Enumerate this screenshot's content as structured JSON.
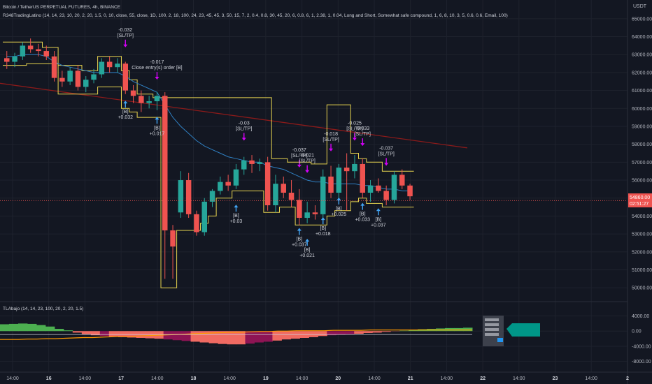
{
  "header": {
    "symbol_line": "Bitcoin / TetherUS PERPETUAL FUTURES, 4h, BINANCE",
    "indicator_line": "R348TradingLatino (14, 14, 23, 10, 20, 2, 20, 1.5, 0, 10, close, 55, close, 1D, 100, 2, 18, 100, 24, 23, 45, 45, 3, 50, 15, 7, 2, 0.4, 0.8, 30, 45, 20, 6, 0.8, 6, 1, 2.38, 1, 0.04, Long and Short, Somewhat safe compound, 1, 6, 8, 10, 3, 5, 0.6, 0.6, Email, 100)",
    "currency": "USDT"
  },
  "price_tag": {
    "value": "54860.00",
    "countdown": "02:51:27"
  },
  "osc_header": "TLAbajo (14, 14, 23, 100, 20, 2, 20, 1.5)",
  "colors": {
    "bg": "#131722",
    "up": "#26a69a",
    "down": "#ef5350",
    "band": "#e6d34f",
    "ema": "#2f7fc1",
    "ma": "#8b1a1a",
    "grid": "#1e222d",
    "signal": "#d500f9",
    "buy": "#42a5f5",
    "osc_green": "#4caf50",
    "osc_red": "#f06a62",
    "osc_maroon": "#8e1454",
    "osc_line": "#ff9800"
  },
  "chart_data": [
    {
      "type": "candlestick",
      "ylim": [
        49500,
        65500
      ],
      "y_ticks": [
        50000,
        51000,
        52000,
        53000,
        54000,
        55000,
        56000,
        57000,
        58000,
        59000,
        60000,
        61000,
        62000,
        63000,
        64000,
        65000
      ],
      "y_tick_labels": [
        "50000.00",
        "51000.00",
        "52000.00",
        "53000.00",
        "54000.00",
        "55000.00",
        "56000.00",
        "57000.00",
        "58000.00",
        "59000.00",
        "60000.00",
        "61000.00",
        "62000.00",
        "63000.00",
        "64000.00",
        "65000.00"
      ],
      "x_tick_labels": [
        "14:00",
        "16",
        "14:00",
        "17",
        "14:00",
        "18",
        "14:00",
        "19",
        "14:00",
        "20",
        "14:00",
        "21",
        "14:00",
        "22",
        "14:00",
        "23",
        "14:00",
        "2"
      ],
      "candles": [
        {
          "o": 62800,
          "h": 63200,
          "l": 62200,
          "c": 62600
        },
        {
          "o": 62600,
          "h": 63100,
          "l": 62300,
          "c": 62900
        },
        {
          "o": 62900,
          "h": 63700,
          "l": 62700,
          "c": 63500
        },
        {
          "o": 63500,
          "h": 63900,
          "l": 63100,
          "c": 63300
        },
        {
          "o": 63300,
          "h": 63600,
          "l": 62900,
          "c": 63200
        },
        {
          "o": 63200,
          "h": 63500,
          "l": 62700,
          "c": 62900
        },
        {
          "o": 62900,
          "h": 63200,
          "l": 61500,
          "c": 61700
        },
        {
          "o": 61700,
          "h": 62100,
          "l": 61200,
          "c": 61500
        },
        {
          "o": 61500,
          "h": 62300,
          "l": 61300,
          "c": 62100
        },
        {
          "o": 62100,
          "h": 62400,
          "l": 61000,
          "c": 61200
        },
        {
          "o": 61200,
          "h": 61800,
          "l": 60900,
          "c": 61600
        },
        {
          "o": 61600,
          "h": 62200,
          "l": 61400,
          "c": 61900
        },
        {
          "o": 61900,
          "h": 62800,
          "l": 61700,
          "c": 62600
        },
        {
          "o": 62600,
          "h": 62900,
          "l": 62000,
          "c": 62300
        },
        {
          "o": 62300,
          "h": 62800,
          "l": 62000,
          "c": 62500
        },
        {
          "o": 62500,
          "h": 62600,
          "l": 60800,
          "c": 61000
        },
        {
          "o": 61000,
          "h": 61300,
          "l": 60300,
          "c": 60700
        },
        {
          "o": 60700,
          "h": 61000,
          "l": 59800,
          "c": 60300
        },
        {
          "o": 60300,
          "h": 60700,
          "l": 60000,
          "c": 60400
        },
        {
          "o": 60400,
          "h": 60900,
          "l": 59900,
          "c": 60700
        },
        {
          "o": 60700,
          "h": 60900,
          "l": 50500,
          "c": 53200
        },
        {
          "o": 53200,
          "h": 53500,
          "l": 50500,
          "c": 52300
        },
        {
          "o": 54200,
          "h": 56500,
          "l": 53900,
          "c": 56000
        },
        {
          "o": 56000,
          "h": 56400,
          "l": 53900,
          "c": 54100
        },
        {
          "o": 54100,
          "h": 54300,
          "l": 52900,
          "c": 53100
        },
        {
          "o": 53100,
          "h": 55000,
          "l": 52900,
          "c": 54800
        },
        {
          "o": 54800,
          "h": 55500,
          "l": 54500,
          "c": 55400
        },
        {
          "o": 55400,
          "h": 56200,
          "l": 55200,
          "c": 55900
        },
        {
          "o": 55900,
          "h": 56300,
          "l": 55400,
          "c": 55700
        },
        {
          "o": 55700,
          "h": 56900,
          "l": 55500,
          "c": 56600
        },
        {
          "o": 56600,
          "h": 57300,
          "l": 56300,
          "c": 57100
        },
        {
          "o": 57100,
          "h": 57400,
          "l": 56400,
          "c": 56900
        },
        {
          "o": 56900,
          "h": 57200,
          "l": 56500,
          "c": 57000
        },
        {
          "o": 57000,
          "h": 57300,
          "l": 54300,
          "c": 54600
        },
        {
          "o": 54600,
          "h": 56300,
          "l": 54200,
          "c": 55800
        },
        {
          "o": 55800,
          "h": 56200,
          "l": 55000,
          "c": 55300
        },
        {
          "o": 55300,
          "h": 56000,
          "l": 54500,
          "c": 54900
        },
        {
          "o": 54900,
          "h": 55500,
          "l": 53500,
          "c": 53900
        },
        {
          "o": 53900,
          "h": 54800,
          "l": 53600,
          "c": 54200
        },
        {
          "o": 54200,
          "h": 54600,
          "l": 53800,
          "c": 54100
        },
        {
          "o": 54100,
          "h": 56600,
          "l": 53900,
          "c": 56200
        },
        {
          "o": 56200,
          "h": 56800,
          "l": 55000,
          "c": 55300
        },
        {
          "o": 55300,
          "h": 56900,
          "l": 55000,
          "c": 56700
        },
        {
          "o": 56700,
          "h": 57500,
          "l": 54300,
          "c": 56500
        },
        {
          "o": 56500,
          "h": 57400,
          "l": 56100,
          "c": 56900
        },
        {
          "o": 56900,
          "h": 57200,
          "l": 55000,
          "c": 55300
        },
        {
          "o": 55300,
          "h": 56000,
          "l": 54800,
          "c": 55700
        },
        {
          "o": 55700,
          "h": 56100,
          "l": 55300,
          "c": 55400
        },
        {
          "o": 55400,
          "h": 55700,
          "l": 54600,
          "c": 54900
        },
        {
          "o": 54900,
          "h": 56500,
          "l": 54700,
          "c": 56300
        },
        {
          "o": 56300,
          "h": 56600,
          "l": 55500,
          "c": 55700
        },
        {
          "o": 55700,
          "h": 55800,
          "l": 54900,
          "c": 55100
        }
      ],
      "upper_band": [
        63700,
        63700,
        63700,
        63700,
        63700,
        63400,
        63400,
        62400,
        62400,
        62400,
        62100,
        62100,
        62900,
        62900,
        62900,
        62100,
        61600,
        60800,
        60800,
        60600,
        60600,
        60600,
        60600,
        60600,
        60600,
        60600,
        60600,
        60600,
        60600,
        60600,
        60600,
        60600,
        60600,
        60600,
        57200,
        57200,
        57000,
        57000,
        57000,
        56900,
        56900,
        60200,
        60200,
        60200,
        57500,
        57200,
        57000,
        57000,
        56500,
        56500,
        56500,
        56500
      ],
      "lower_band": [
        62400,
        62400,
        62400,
        62500,
        62500,
        62500,
        62500,
        60800,
        60800,
        60800,
        60800,
        60800,
        61200,
        61200,
        61200,
        60000,
        59800,
        59500,
        59500,
        59500,
        50000,
        50000,
        53200,
        53200,
        53200,
        53600,
        54000,
        55000,
        55000,
        55400,
        55400,
        55400,
        55400,
        54200,
        54200,
        54500,
        54500,
        53500,
        53500,
        53500,
        53500,
        54000,
        54300,
        54300,
        54800,
        55000,
        54700,
        54700,
        54500,
        54500,
        54500,
        54500
      ],
      "ema": [
        62900,
        62900,
        63000,
        63000,
        63000,
        62900,
        62600,
        62400,
        62300,
        62200,
        62100,
        62000,
        62000,
        62000,
        62000,
        61800,
        61500,
        61300,
        61100,
        60900,
        60200,
        59500,
        59000,
        58600,
        58200,
        57900,
        57700,
        57500,
        57300,
        57200,
        57100,
        57000,
        57000,
        56800,
        56700,
        56600,
        56400,
        56200,
        56000,
        55900,
        55900,
        55800,
        55800,
        55800,
        55800,
        55700,
        55700,
        55600,
        55500,
        55500,
        55400,
        55400
      ],
      "ma_start": 61400,
      "ma_end": 57800,
      "signals": [
        {
          "candle": 15,
          "price": 63600,
          "text": "-0.032",
          "sub": "[SL/TP]"
        },
        {
          "candle": 19,
          "price": 61800,
          "text": "-0.017",
          "sub": "Close entry(s) order [B]"
        },
        {
          "candle": 30,
          "price": 58400,
          "text": "-0.03",
          "sub": "[SL/TP]"
        },
        {
          "candle": 37,
          "price": 56900,
          "text": "-0.037",
          "sub": "[SL/TP]"
        },
        {
          "candle": 38,
          "price": 56600,
          "text": "-0.021",
          "sub": "[SL/TP]"
        },
        {
          "candle": 41,
          "price": 57800,
          "text": "-0.018",
          "sub": "[SL/TP]"
        },
        {
          "candle": 44,
          "price": 58400,
          "text": "-0.025",
          "sub": "[SL/TP]"
        },
        {
          "candle": 45,
          "price": 58100,
          "text": "-0.033",
          "sub": "[SL/TP]"
        },
        {
          "candle": 48,
          "price": 57000,
          "text": "-0.037",
          "sub": "[SL/TP]"
        }
      ],
      "buys": [
        {
          "candle": 15,
          "price": 60200,
          "text": "+0.032"
        },
        {
          "candle": 19,
          "price": 59300,
          "text": "+0.017"
        },
        {
          "candle": 29,
          "price": 54400,
          "text": "+0.03"
        },
        {
          "candle": 37,
          "price": 53100,
          "text": "+0.037"
        },
        {
          "candle": 38,
          "price": 52500,
          "text": "+0.021"
        },
        {
          "candle": 40,
          "price": 53700,
          "text": "+0.018"
        },
        {
          "candle": 42,
          "price": 54800,
          "text": "+0.025"
        },
        {
          "candle": 45,
          "price": 54500,
          "text": "+0.033"
        },
        {
          "candle": 47,
          "price": 54200,
          "text": "+0.037"
        }
      ]
    },
    {
      "type": "area",
      "title": "TLAbajo (14, 14, 23, 100, 20, 2, 20, 1.5)",
      "ylim": [
        -8800,
        5200
      ],
      "y_ticks": [
        4000,
        0,
        -4000,
        -8000
      ],
      "y_tick_labels": [
        "4000.00",
        "0.00",
        "-4000.00",
        "-8000.00"
      ],
      "adx_values": [
        1800,
        1900,
        2000,
        1900,
        1600,
        1200,
        600,
        200,
        -400,
        -800,
        -1100,
        -1300,
        -1500,
        -1600,
        -1700,
        -1800,
        -1900,
        -2000,
        -2200,
        -2400,
        -2600,
        -2800,
        -3000,
        -3200,
        -3400,
        -3500,
        -3500,
        -3300,
        -3000,
        -2800,
        -2500,
        -2200,
        -2000,
        -1800,
        -1600,
        -1300,
        -1100,
        -1000,
        -800,
        -700,
        -500,
        -400,
        -200,
        -50,
        100,
        300,
        500,
        600,
        700,
        800,
        800,
        900
      ],
      "line_values": [
        -2200,
        -2200,
        -2200,
        -2100,
        -2100,
        -2000,
        -2000,
        -1900,
        -1800,
        -1700,
        -1700,
        -1600,
        -1500,
        -1400,
        -1400,
        -1300,
        -1200,
        -1100,
        -1000,
        -900,
        -800,
        -700,
        -600,
        -500,
        -400,
        -300,
        -300,
        -200,
        -100,
        -100,
        0,
        0,
        100,
        100,
        100,
        100,
        200,
        200,
        200,
        200,
        300,
        300,
        300,
        300,
        300,
        300,
        300,
        300,
        300,
        300,
        300,
        300
      ]
    }
  ]
}
